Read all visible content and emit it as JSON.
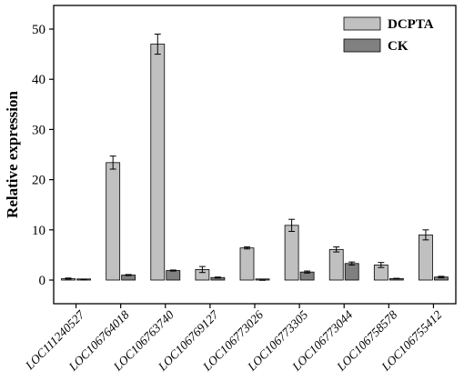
{
  "chart_data": {
    "type": "bar",
    "title": "",
    "xlabel": "",
    "ylabel": "Relative expression",
    "ylim": [
      -3,
      55
    ],
    "yticks": [
      0,
      10,
      20,
      30,
      40,
      50
    ],
    "grid": false,
    "legend_position": "top-right",
    "categories": [
      "LOC111240527",
      "LOC106764018",
      "LOC106763740",
      "LOC106769127",
      "LOC106773026",
      "LOC106773305",
      "LOC106773044",
      "LOC106758578",
      "LOC106755412"
    ],
    "series": [
      {
        "name": "DCPTA",
        "color": "#c0c0c0",
        "values": [
          0.3,
          23.4,
          47.0,
          2.1,
          6.4,
          10.9,
          6.1,
          3.0,
          9.0
        ],
        "errors": [
          0.1,
          1.3,
          2.0,
          0.6,
          0.2,
          1.2,
          0.5,
          0.5,
          1.0
        ]
      },
      {
        "name": "CK",
        "color": "#808080",
        "values": [
          0.1,
          1.0,
          1.9,
          0.5,
          0.0,
          1.6,
          3.3,
          0.3,
          0.6
        ],
        "errors": [
          0.05,
          0.1,
          0.1,
          0.1,
          0.05,
          0.2,
          0.3,
          0.05,
          0.15
        ]
      }
    ]
  }
}
